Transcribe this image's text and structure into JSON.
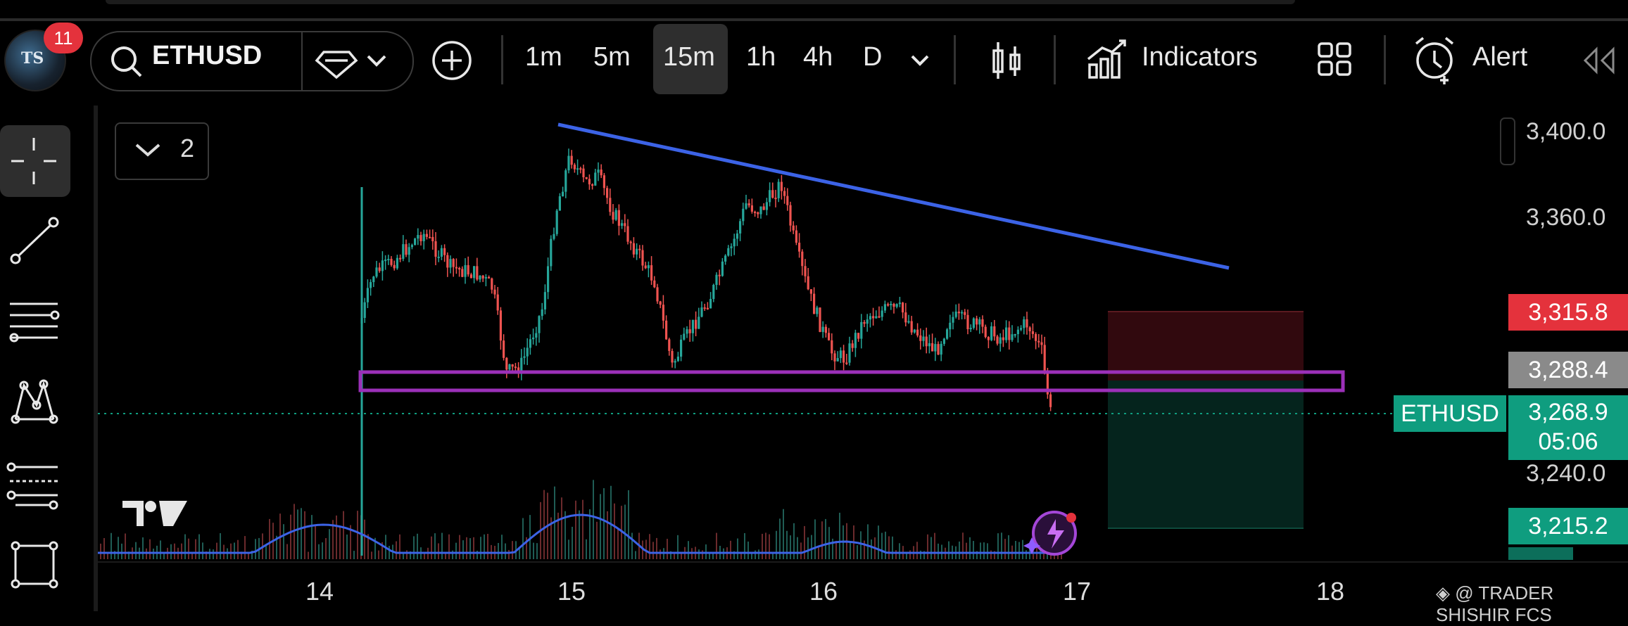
{
  "header": {
    "notification_count": "11",
    "avatar_initials": "TS",
    "symbol": "ETHUSD",
    "timeframes": [
      "1m",
      "5m",
      "15m",
      "1h",
      "4h",
      "D"
    ],
    "active_timeframe": "15m",
    "indicators_label": "Indicators",
    "alert_label": "Alert"
  },
  "chart": {
    "legend_count": "2",
    "price_labels": [
      "3,400.0",
      "3,360.0",
      "3,240.0"
    ],
    "tags": {
      "stop": "3,315.8",
      "level": "3,288.4",
      "current": "3,268.9",
      "countdown": "05:06",
      "target": "3,215.2"
    },
    "symbol_tag": "ETHUSD",
    "x_labels": [
      "14",
      "15",
      "16",
      "17",
      "18"
    ],
    "watermark": "◈ @ TRADER SHISHIR FCS",
    "colors": {
      "up": "#26a69a",
      "down": "#ef5350",
      "trendline": "#3c63e6",
      "zone": "#9b30b8",
      "stop_tag": "#e4323c",
      "level_tag": "#8a8a8a",
      "current_tag": "#0f9d7f"
    }
  }
}
